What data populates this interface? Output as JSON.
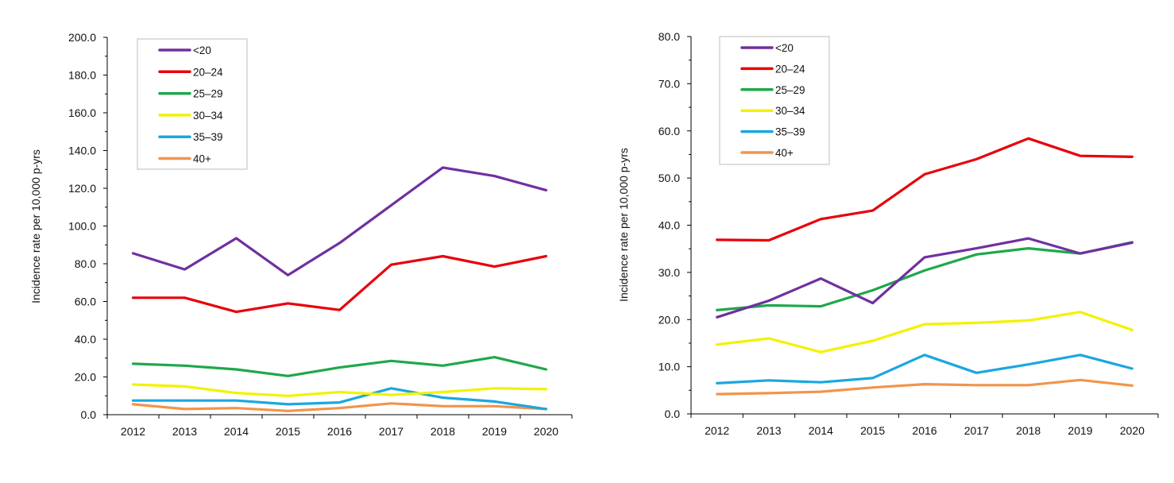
{
  "chart_data": [
    {
      "type": "line",
      "title": "",
      "xlabel": "",
      "ylabel": "Incidence rate per 10,000 p-yrs",
      "categories": [
        "2012",
        "2013",
        "2014",
        "2015",
        "2016",
        "2017",
        "2018",
        "2019",
        "2020"
      ],
      "ylim": [
        0,
        200
      ],
      "yticks": [
        "0.0",
        "20.0",
        "40.0",
        "60.0",
        "80.0",
        "100.0",
        "120.0",
        "140.0",
        "160.0",
        "180.0",
        "200.0"
      ],
      "grid": false,
      "legend_position": "top-left",
      "series": [
        {
          "name": "<20",
          "color": "#7030a0",
          "values": [
            85.5,
            77,
            93.5,
            74,
            91,
            111,
            131,
            126.5,
            119
          ]
        },
        {
          "name": "20–24",
          "color": "#e8000b",
          "values": [
            62,
            62,
            54.5,
            59,
            55.5,
            79.5,
            84,
            78.5,
            84
          ]
        },
        {
          "name": "25–29",
          "color": "#1ea84a",
          "values": [
            27,
            26,
            24,
            20.5,
            25,
            28.5,
            26,
            30.5,
            24
          ]
        },
        {
          "name": "30–34",
          "color": "#f2f200",
          "values": [
            16,
            15,
            11.5,
            10,
            12,
            10.5,
            12,
            14,
            13.5
          ]
        },
        {
          "name": "35–39",
          "color": "#1aa7e0",
          "values": [
            7.5,
            7.5,
            7.5,
            5.5,
            6.5,
            14,
            9,
            7,
            3
          ]
        },
        {
          "name": "40+",
          "color": "#f2944a",
          "values": [
            5.5,
            3,
            3.5,
            2,
            3.5,
            6,
            4.5,
            4.5,
            3
          ]
        }
      ]
    },
    {
      "type": "line",
      "title": "",
      "xlabel": "",
      "ylabel": "Incidence rate per 10,000 p-yrs",
      "categories": [
        "2012",
        "2013",
        "2014",
        "2015",
        "2016",
        "2017",
        "2018",
        "2019",
        "2020"
      ],
      "ylim": [
        0,
        80
      ],
      "yticks": [
        "0.0",
        "10.0",
        "20.0",
        "30.0",
        "40.0",
        "50.0",
        "60.0",
        "70.0",
        "80.0"
      ],
      "grid": false,
      "legend_position": "top-left",
      "series": [
        {
          "name": "<20",
          "color": "#7030a0",
          "values": [
            20.5,
            24,
            28.7,
            23.5,
            33.2,
            35.1,
            37.2,
            34,
            36.3
          ]
        },
        {
          "name": "20–24",
          "color": "#e8000b",
          "values": [
            36.9,
            36.8,
            41.3,
            43.1,
            50.8,
            54,
            58.4,
            54.7,
            54.5
          ]
        },
        {
          "name": "25–29",
          "color": "#1ea84a",
          "values": [
            22,
            23,
            22.8,
            26.2,
            30.4,
            33.8,
            35.1,
            34,
            36.4
          ]
        },
        {
          "name": "30–34",
          "color": "#f2f200",
          "values": [
            14.7,
            16,
            13.1,
            15.5,
            19,
            19.3,
            19.8,
            21.6,
            17.8
          ]
        },
        {
          "name": "35–39",
          "color": "#1aa7e0",
          "values": [
            6.5,
            7.1,
            6.7,
            7.6,
            12.5,
            8.7,
            10.5,
            12.5,
            9.6
          ]
        },
        {
          "name": "40+",
          "color": "#f2944a",
          "values": [
            4.2,
            4.4,
            4.7,
            5.6,
            6.3,
            6.1,
            6.1,
            7.2,
            6
          ]
        }
      ]
    }
  ]
}
